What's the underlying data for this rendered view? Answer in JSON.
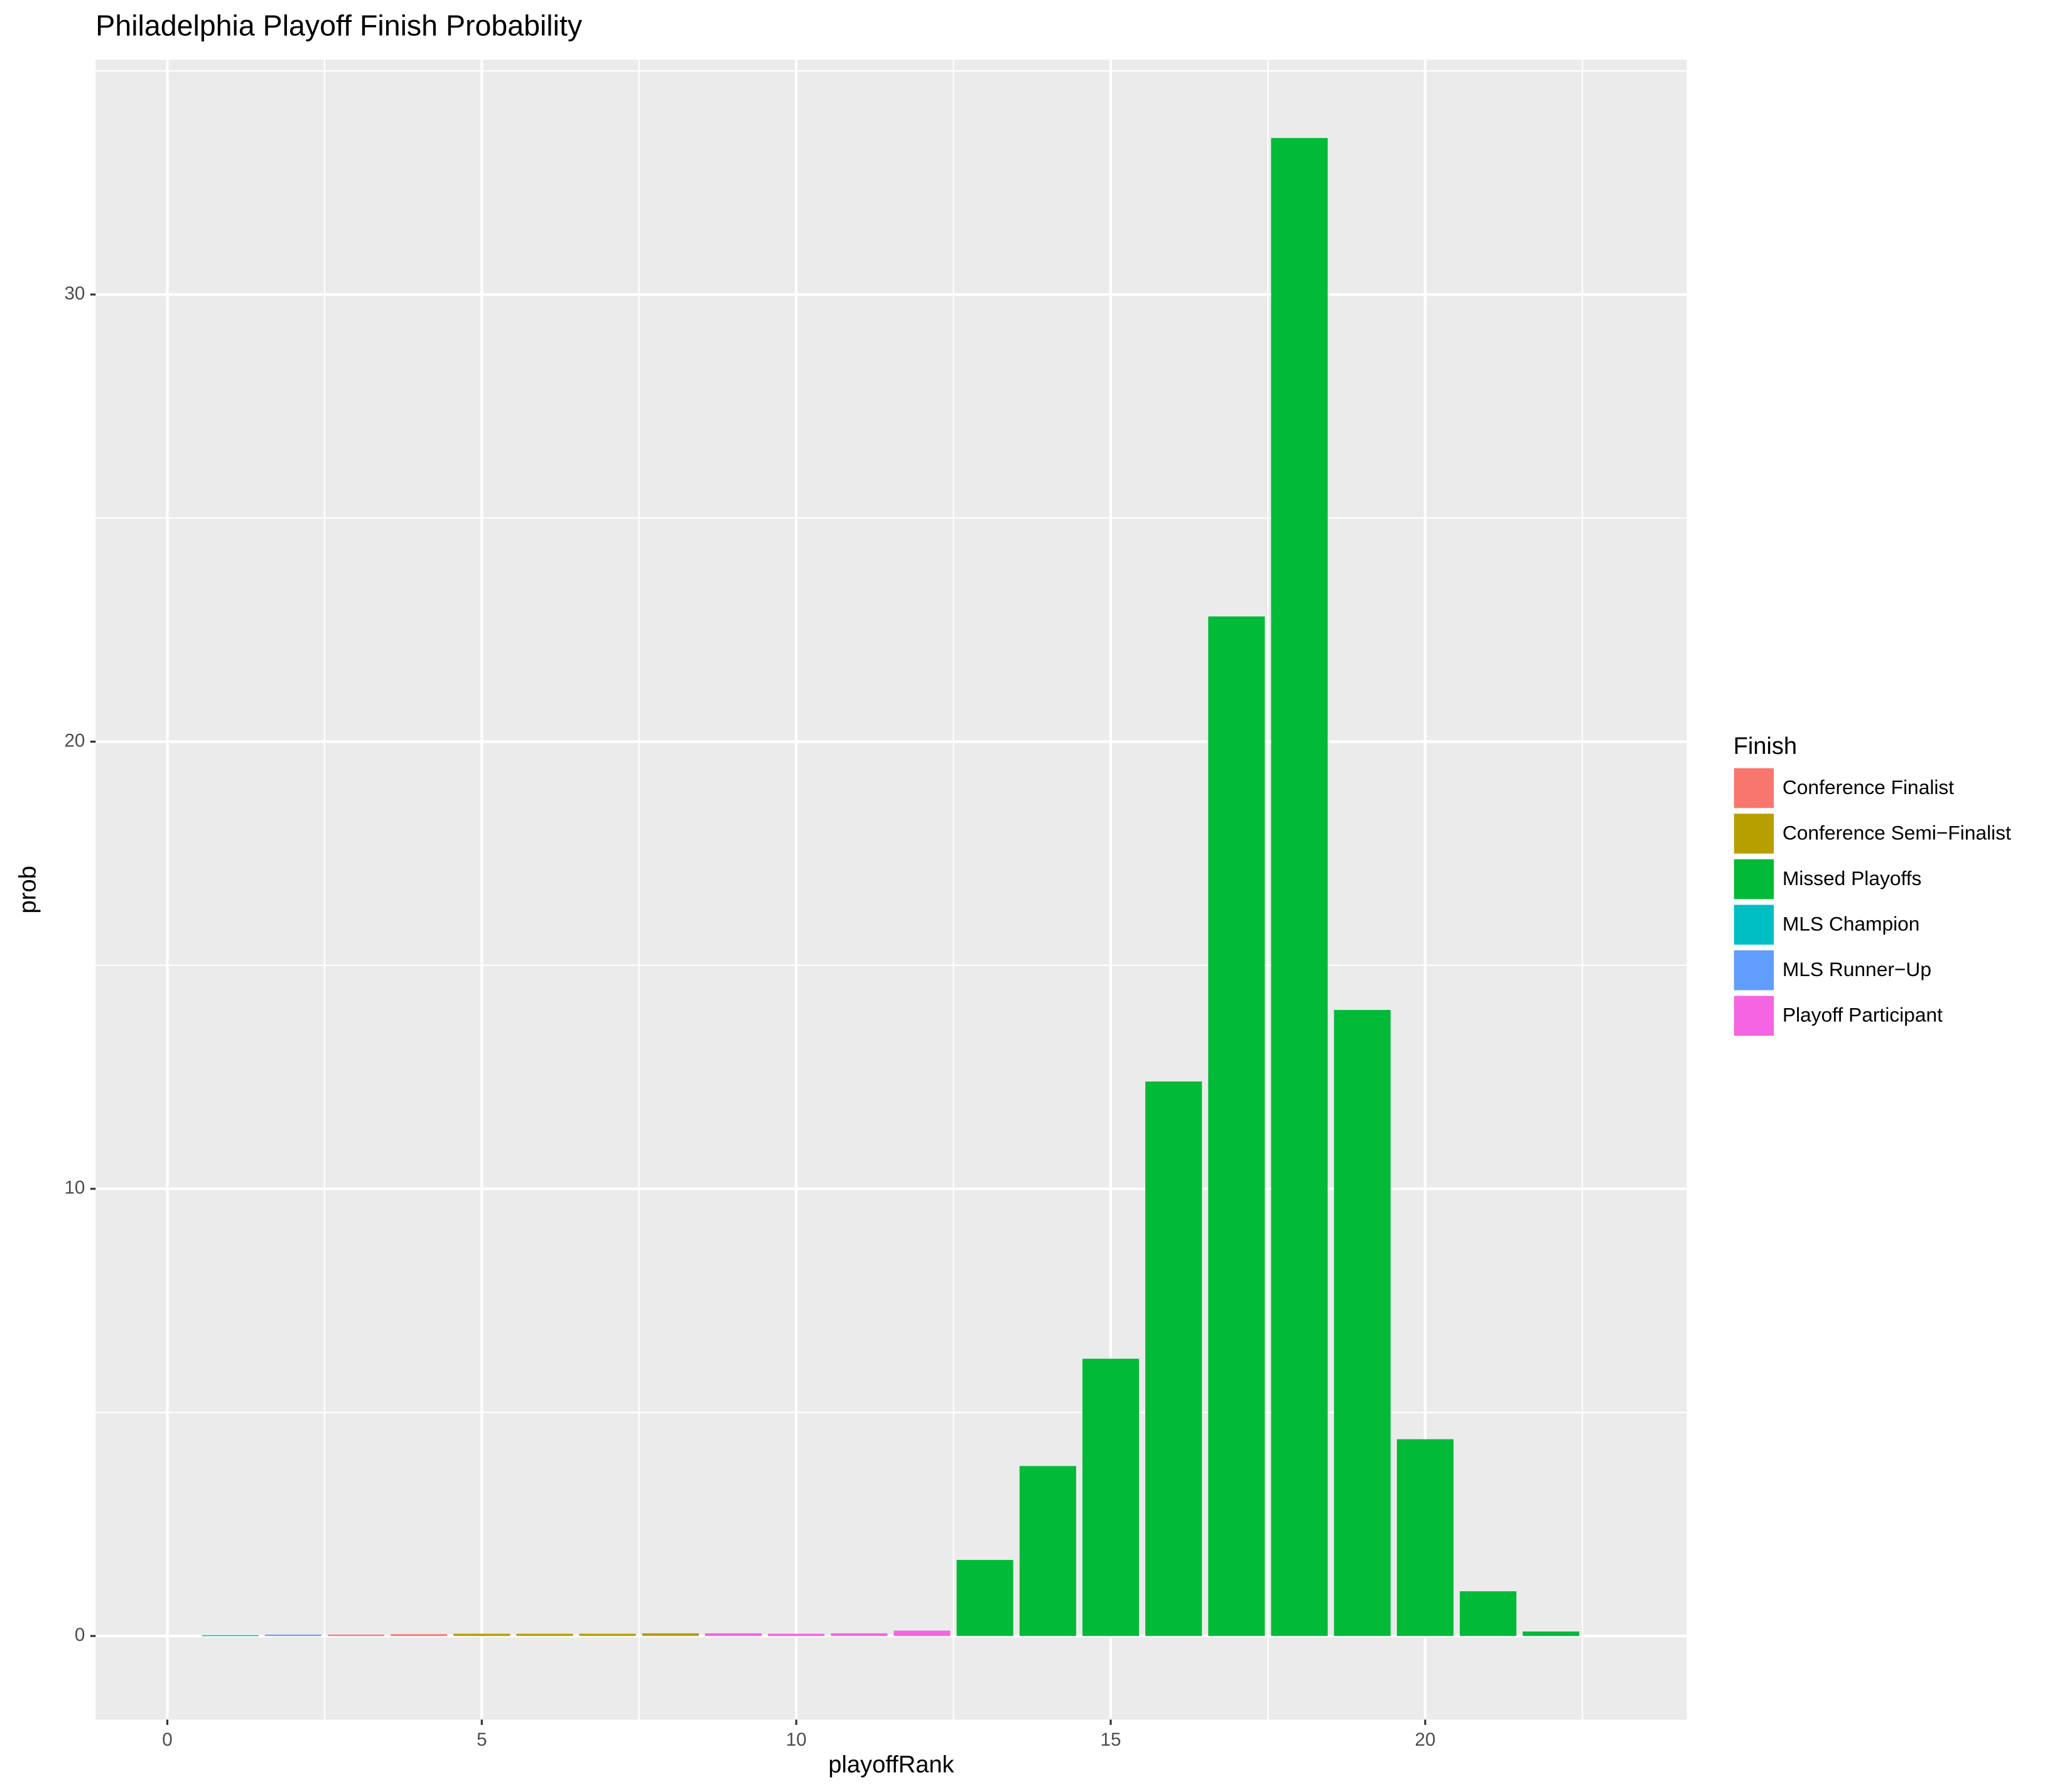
{
  "chart_data": {
    "type": "bar",
    "title": "Philadelphia Playoff Finish Probability",
    "x_label": "playoffRank",
    "y_label": "prob",
    "legend_title": "Finish",
    "x": [
      1,
      2,
      3,
      4,
      5,
      6,
      7,
      8,
      9,
      10,
      11,
      12,
      13,
      14,
      15,
      16,
      17,
      18,
      19,
      20,
      21,
      22
    ],
    "series": [
      {
        "name": "Conference Finalist",
        "color": "#f8766d",
        "values": [
          null,
          null,
          0.03,
          0.04,
          null,
          null,
          null,
          null,
          null,
          null,
          null,
          null,
          null,
          null,
          null,
          null,
          null,
          null,
          null,
          null,
          null,
          null
        ]
      },
      {
        "name": "Conference Semi−Finalist",
        "color": "#b79f00",
        "values": [
          null,
          null,
          null,
          null,
          0.05,
          0.05,
          0.05,
          0.06,
          null,
          null,
          null,
          null,
          null,
          null,
          null,
          null,
          null,
          null,
          null,
          null,
          null,
          null
        ]
      },
      {
        "name": "Missed Playoffs",
        "color": "#00ba38",
        "values": [
          null,
          null,
          null,
          null,
          null,
          null,
          null,
          null,
          null,
          null,
          null,
          null,
          1.7,
          3.8,
          6.2,
          12.4,
          22.8,
          33.5,
          14.0,
          4.4,
          1.0,
          0.1
        ]
      },
      {
        "name": "MLS Champion",
        "color": "#00bfc4",
        "values": [
          0.02,
          null,
          null,
          null,
          null,
          null,
          null,
          null,
          null,
          null,
          null,
          null,
          null,
          null,
          null,
          null,
          null,
          null,
          null,
          null,
          null,
          null
        ]
      },
      {
        "name": "MLS Runner−Up",
        "color": "#619cff",
        "values": [
          null,
          0.03,
          null,
          null,
          null,
          null,
          null,
          null,
          null,
          null,
          null,
          null,
          null,
          null,
          null,
          null,
          null,
          null,
          null,
          null,
          null,
          null
        ]
      },
      {
        "name": "Playoff Participant",
        "color": "#f564e3",
        "values": [
          null,
          null,
          null,
          null,
          null,
          null,
          null,
          null,
          0.06,
          0.05,
          0.06,
          0.12,
          null,
          null,
          null,
          null,
          null,
          null,
          null,
          null,
          null,
          null
        ]
      }
    ],
    "xlim": [
      -1.14,
      24.16
    ],
    "ylim": [
      -1.87,
      35.25
    ],
    "xticks": [
      0,
      5,
      10,
      15,
      20
    ],
    "yticks": [
      0,
      10,
      20,
      30
    ],
    "grid": true,
    "legend": "right"
  }
}
